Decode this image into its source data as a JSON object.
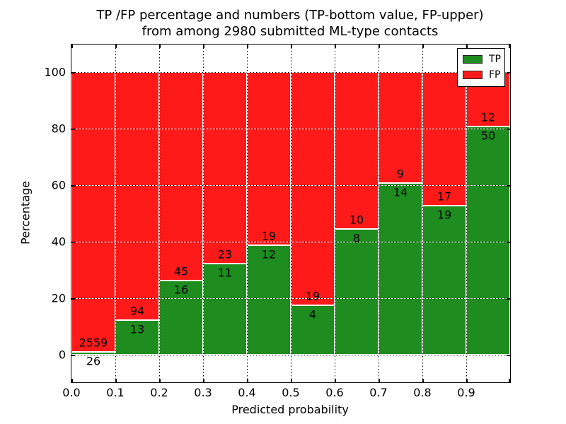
{
  "title": {
    "line1": "TP /FP percentage and numbers (TP-bottom value, FP-upper)",
    "line2": "from among 2980 submitted ML-type contacts"
  },
  "axes": {
    "xlabel": "Predicted probability",
    "ylabel": "Percentage"
  },
  "legend": [
    {
      "label": "TP",
      "color": "#1e8c1e"
    },
    {
      "label": "FP",
      "color": "#ff1a1a"
    }
  ],
  "chart_data": {
    "type": "bar",
    "stacked": true,
    "normalized": "percent",
    "title": "TP /FP percentage and numbers (TP-bottom value, FP-upper) from among 2980 submitted ML-type contacts",
    "xlabel": "Predicted probability",
    "ylabel": "Percentage",
    "total_contacts": 2980,
    "bin_edges": [
      0.0,
      0.1,
      0.2,
      0.3,
      0.4,
      0.5,
      0.6,
      0.7,
      0.8,
      0.9,
      1.0
    ],
    "x_tick_labels": [
      "0.0",
      "0.1",
      "0.2",
      "0.3",
      "0.4",
      "0.5",
      "0.6",
      "0.7",
      "0.8",
      "0.9"
    ],
    "y_tick_labels": [
      0,
      20,
      40,
      60,
      80,
      100
    ],
    "ylim": [
      -9.75,
      109.75
    ],
    "grid": true,
    "grid_style": "dotted",
    "legend_position": "upper right",
    "series": [
      {
        "name": "TP",
        "color": "#1e8c1e",
        "counts": [
          26,
          13,
          16,
          11,
          12,
          4,
          8,
          14,
          19,
          50
        ]
      },
      {
        "name": "FP",
        "color": "#ff1a1a",
        "counts": [
          2559,
          94,
          45,
          23,
          19,
          19,
          10,
          9,
          17,
          12
        ]
      }
    ],
    "tp_percent": [
      1.0,
      12.1,
      26.2,
      32.4,
      38.7,
      17.4,
      44.4,
      60.9,
      52.8,
      80.6
    ]
  }
}
